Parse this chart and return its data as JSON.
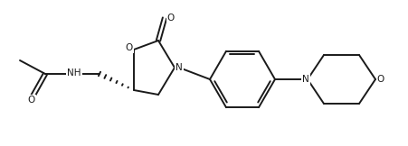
{
  "bg_color": "#ffffff",
  "line_color": "#1a1a1a",
  "lw": 1.4,
  "figsize": [
    4.52,
    1.62
  ],
  "dpi": 100,
  "atoms": {
    "O_carbonyl_acetyl": "O",
    "NH": "NH",
    "O_ring": "O",
    "N_ring": "N",
    "O_carbonyl_ring": "O",
    "N_benz": "N",
    "O_morph": "O"
  }
}
